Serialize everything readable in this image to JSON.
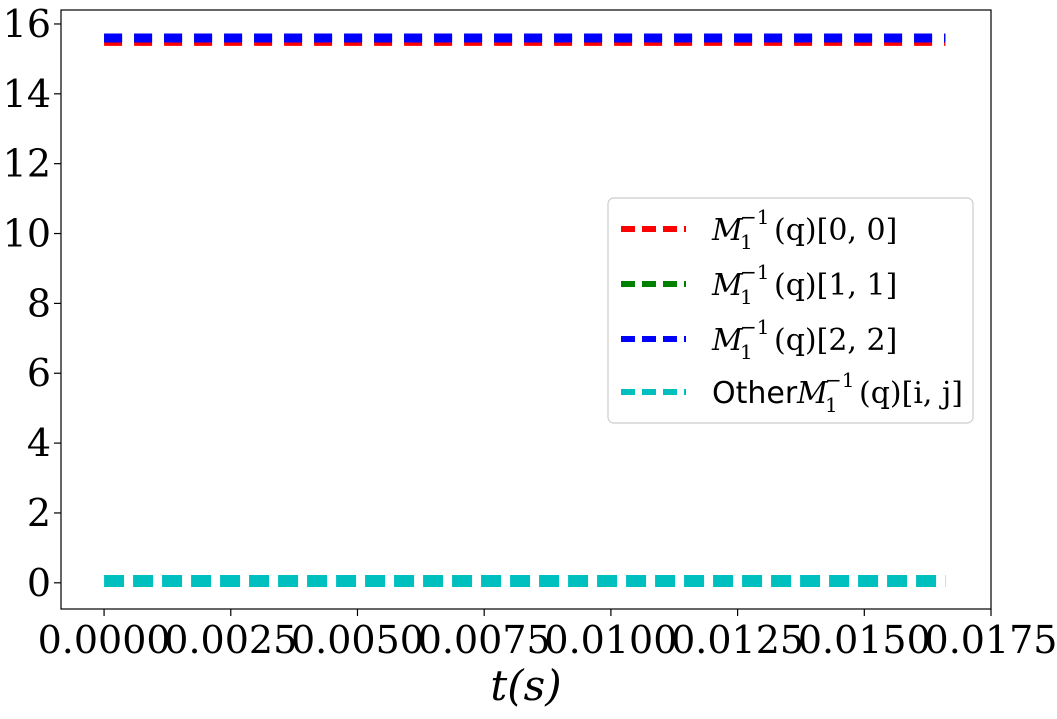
{
  "chart_data": {
    "type": "line",
    "xlabel": "t(s)",
    "ylabel": "",
    "xlim": [
      -0.00085,
      0.0175
    ],
    "ylim": [
      -0.75,
      16.4
    ],
    "x_ticks": [
      0.0,
      0.0025,
      0.005,
      0.0075,
      0.01,
      0.0125,
      0.015,
      0.0175
    ],
    "x_tick_labels": [
      "0.0000",
      "0.0025",
      "0.0050",
      "0.0075",
      "0.0100",
      "0.0125",
      "0.0150",
      "0.0175"
    ],
    "y_ticks": [
      0,
      2,
      4,
      6,
      8,
      10,
      12,
      14,
      16
    ],
    "y_tick_labels": [
      "0",
      "2",
      "4",
      "6",
      "8",
      "10",
      "12",
      "14",
      "16"
    ],
    "grid": false,
    "legend_position": "center-right",
    "x": [
      0.0,
      0.0166
    ],
    "series": [
      {
        "name": "M_1^{-1}(q)[0, 0]",
        "label_base": "M",
        "label_sub": "1",
        "label_sup": "−1",
        "label_tail": "(q)[0, 0]",
        "color": "#ff0000",
        "values": [
          15.5,
          15.5
        ],
        "style": "dashed"
      },
      {
        "name": "M_1^{-1}(q)[1, 1]",
        "label_base": "M",
        "label_sub": "1",
        "label_sup": "−1",
        "label_tail": "(q)[1, 1]",
        "color": "#008000",
        "values": [
          15.6,
          15.6
        ],
        "style": "dashed"
      },
      {
        "name": "M_1^{-1}(q)[2, 2]",
        "label_base": "M",
        "label_sub": "1",
        "label_sup": "−1",
        "label_tail": "(q)[2, 2]",
        "color": "#0000ff",
        "values": [
          15.6,
          15.6
        ],
        "style": "dashed"
      },
      {
        "name": "Other M_1^{-1}(q)[i, j]",
        "label_prefix": "Other ",
        "label_base": "M",
        "label_sub": "1",
        "label_sup": "−1",
        "label_tail": "(q)[i, j]",
        "color": "#00bfbf",
        "values": [
          0.05,
          0.05
        ],
        "style": "dashed"
      }
    ]
  }
}
